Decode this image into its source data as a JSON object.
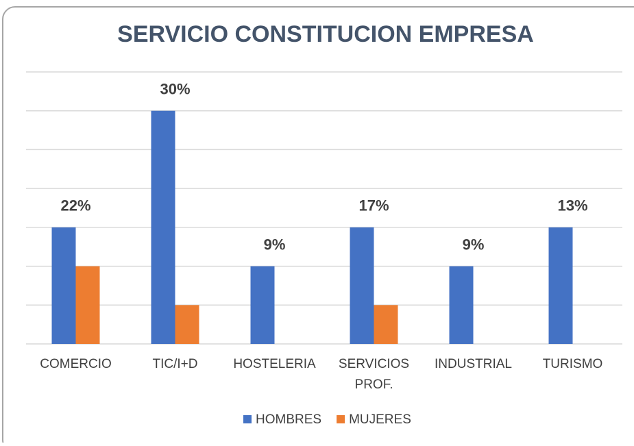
{
  "chart_data": {
    "type": "bar",
    "title": "SERVICIO CONSTITUCION EMPRESA",
    "categories": [
      "COMERCIO",
      "TIC/I+D",
      "HOSTELERIA",
      "SERVICIOS PROF.",
      "INDUSTRIAL",
      "TURISMO"
    ],
    "series": [
      {
        "name": "HOMBRES",
        "color": "#4472c4",
        "values": [
          3,
          6,
          2,
          3,
          2,
          3
        ]
      },
      {
        "name": "MUJERES",
        "color": "#ed7d31",
        "values": [
          2,
          1,
          0,
          1,
          0,
          0
        ]
      }
    ],
    "annotations": [
      "22%",
      "30%",
      "9%",
      "17%",
      "9%",
      "13%"
    ],
    "ylim": [
      0,
      7
    ],
    "yticks": [
      0,
      1,
      2,
      3,
      4,
      5,
      6,
      7
    ],
    "grid": true,
    "legend": "bottom"
  }
}
